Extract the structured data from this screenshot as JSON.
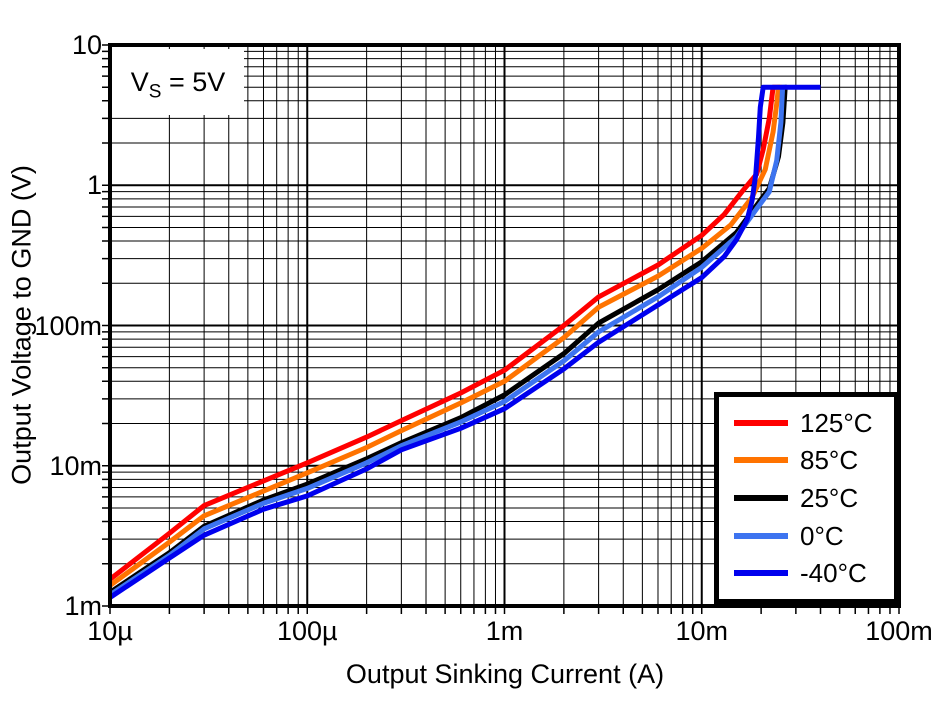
{
  "figure": {
    "annotation": {
      "prefix": "V",
      "sub": "S",
      "suffix": " = 5V"
    }
  },
  "chart_data": {
    "type": "line",
    "title": "",
    "xlabel": "Output Sinking Current (A)",
    "ylabel": "Output Voltage to GND (V)",
    "x_scale": "log",
    "y_scale": "log",
    "xlim": [
      1e-05,
      0.1
    ],
    "ylim": [
      0.001,
      10
    ],
    "grid": true,
    "legend_position": "bottom-right",
    "x_ticks": [
      {
        "v": 1e-05,
        "label": "10µ"
      },
      {
        "v": 0.0001,
        "label": "100µ"
      },
      {
        "v": 0.001,
        "label": "1m"
      },
      {
        "v": 0.01,
        "label": "10m"
      },
      {
        "v": 0.1,
        "label": "100m"
      }
    ],
    "y_ticks": [
      {
        "v": 10,
        "label": "10"
      },
      {
        "v": 1,
        "label": "1"
      },
      {
        "v": 0.1,
        "label": "100m"
      },
      {
        "v": 0.01,
        "label": "10m"
      },
      {
        "v": 0.001,
        "label": "1m"
      }
    ],
    "series": [
      {
        "name": "125°C",
        "color": "#FF0000",
        "points": [
          [
            1e-05,
            0.00155
          ],
          [
            2e-05,
            0.0033
          ],
          [
            3e-05,
            0.0052
          ],
          [
            6e-05,
            0.0078
          ],
          [
            0.0001,
            0.0105
          ],
          [
            0.0002,
            0.016
          ],
          [
            0.0003,
            0.021
          ],
          [
            0.0006,
            0.033
          ],
          [
            0.001,
            0.048
          ],
          [
            0.002,
            0.1
          ],
          [
            0.003,
            0.16
          ],
          [
            0.006,
            0.27
          ],
          [
            0.01,
            0.44
          ],
          [
            0.013,
            0.62
          ],
          [
            0.016,
            0.9
          ],
          [
            0.019,
            1.2
          ],
          [
            0.0205,
            1.8
          ],
          [
            0.022,
            3.0
          ],
          [
            0.023,
            5.0
          ],
          [
            0.025,
            5.0
          ]
        ]
      },
      {
        "name": "85°C",
        "color": "#FF7300",
        "points": [
          [
            1e-05,
            0.0014
          ],
          [
            2e-05,
            0.00285
          ],
          [
            3e-05,
            0.0044
          ],
          [
            6e-05,
            0.0066
          ],
          [
            0.0001,
            0.0089
          ],
          [
            0.0002,
            0.0135
          ],
          [
            0.0003,
            0.0178
          ],
          [
            0.0006,
            0.028
          ],
          [
            0.001,
            0.04
          ],
          [
            0.002,
            0.082
          ],
          [
            0.003,
            0.135
          ],
          [
            0.006,
            0.225
          ],
          [
            0.01,
            0.355
          ],
          [
            0.014,
            0.52
          ],
          [
            0.018,
            0.82
          ],
          [
            0.021,
            1.3
          ],
          [
            0.023,
            2.4
          ],
          [
            0.024,
            3.8
          ],
          [
            0.0245,
            5.0
          ],
          [
            0.0255,
            5.0
          ]
        ]
      },
      {
        "name": "25°C",
        "color": "#000000",
        "points": [
          [
            1e-05,
            0.00125
          ],
          [
            2e-05,
            0.0024
          ],
          [
            3e-05,
            0.0037
          ],
          [
            6e-05,
            0.0057
          ],
          [
            0.0001,
            0.0074
          ],
          [
            0.0002,
            0.0112
          ],
          [
            0.0003,
            0.0146
          ],
          [
            0.0006,
            0.022
          ],
          [
            0.001,
            0.032
          ],
          [
            0.002,
            0.063
          ],
          [
            0.003,
            0.104
          ],
          [
            0.006,
            0.18
          ],
          [
            0.01,
            0.285
          ],
          [
            0.015,
            0.46
          ],
          [
            0.019,
            0.72
          ],
          [
            0.022,
            0.95
          ],
          [
            0.0245,
            1.6
          ],
          [
            0.0258,
            2.8
          ],
          [
            0.0265,
            5.0
          ],
          [
            0.027,
            5.0
          ]
        ]
      },
      {
        "name": "0°C",
        "color": "#3D74F0",
        "points": [
          [
            1e-05,
            0.0012
          ],
          [
            2e-05,
            0.0023
          ],
          [
            3e-05,
            0.00355
          ],
          [
            6e-05,
            0.0054
          ],
          [
            0.0001,
            0.0069
          ],
          [
            0.0002,
            0.0105
          ],
          [
            0.0003,
            0.0139
          ],
          [
            0.0006,
            0.0205
          ],
          [
            0.001,
            0.0287
          ],
          [
            0.002,
            0.056
          ],
          [
            0.003,
            0.09
          ],
          [
            0.006,
            0.16
          ],
          [
            0.01,
            0.26
          ],
          [
            0.015,
            0.43
          ],
          [
            0.019,
            0.68
          ],
          [
            0.022,
            0.9
          ],
          [
            0.024,
            1.5
          ],
          [
            0.0252,
            2.8
          ],
          [
            0.0257,
            5.0
          ],
          [
            0.0262,
            5.0
          ]
        ]
      },
      {
        "name": "-40°C",
        "color": "#0000EE",
        "points": [
          [
            1e-05,
            0.00115
          ],
          [
            2e-05,
            0.0022
          ],
          [
            3e-05,
            0.0032
          ],
          [
            6e-05,
            0.0049
          ],
          [
            0.0001,
            0.0061
          ],
          [
            0.0002,
            0.0095
          ],
          [
            0.0003,
            0.013
          ],
          [
            0.0006,
            0.0185
          ],
          [
            0.001,
            0.0255
          ],
          [
            0.002,
            0.049
          ],
          [
            0.003,
            0.076
          ],
          [
            0.006,
            0.14
          ],
          [
            0.01,
            0.22
          ],
          [
            0.013,
            0.31
          ],
          [
            0.015,
            0.41
          ],
          [
            0.017,
            0.57
          ],
          [
            0.018,
            0.78
          ],
          [
            0.0188,
            1.2
          ],
          [
            0.0194,
            2.2
          ],
          [
            0.0198,
            3.6
          ],
          [
            0.0205,
            5.0
          ],
          [
            0.04,
            5.0
          ]
        ]
      }
    ]
  }
}
